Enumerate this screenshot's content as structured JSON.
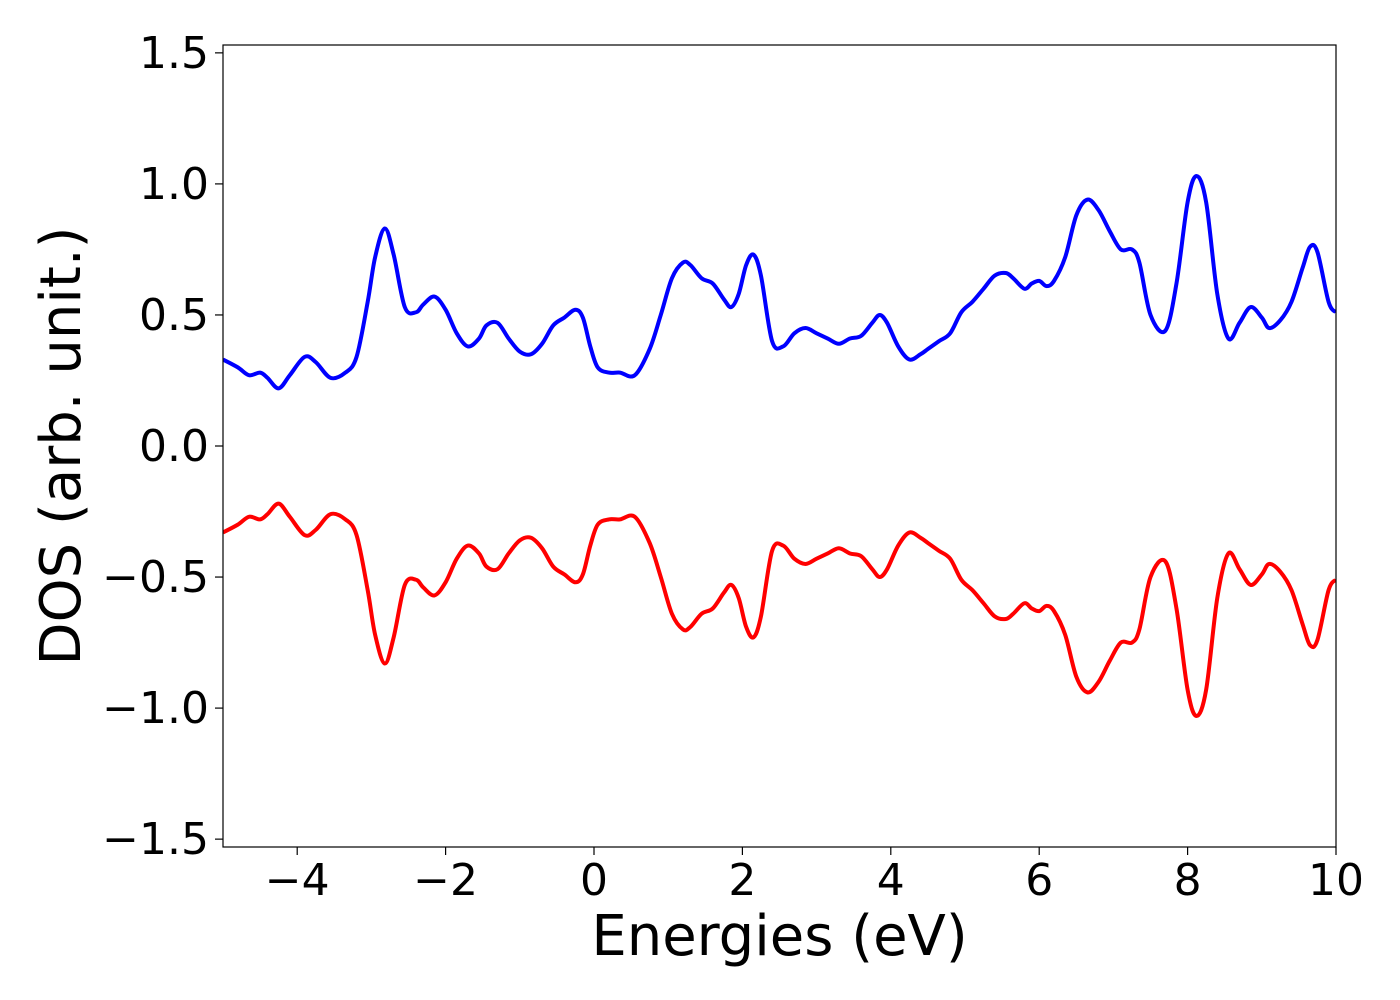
{
  "chart_data": {
    "type": "line",
    "xlabel": "Energies (eV)",
    "ylabel": "DOS (arb. unit.)",
    "xlim": [
      -5,
      10
    ],
    "ylim": [
      -1.53,
      1.53
    ],
    "xticks": [
      -4,
      -2,
      0,
      2,
      4,
      6,
      8,
      10
    ],
    "xtick_labels": [
      "−4",
      "−2",
      "0",
      "2",
      "4",
      "6",
      "8",
      "10"
    ],
    "yticks": [
      1.5,
      1.0,
      0.5,
      0.0,
      -0.5,
      -1.0,
      -1.5
    ],
    "ytick_labels": [
      "1.5",
      "1.0",
      "0.5",
      "0.0",
      "−0.5",
      "−1.0",
      "−1.5"
    ],
    "grid": false,
    "series": [
      {
        "color": "#0000ff",
        "x": [
          -5.0,
          -4.8,
          -4.65,
          -4.5,
          -4.4,
          -4.25,
          -4.1,
          -3.9,
          -3.75,
          -3.55,
          -3.35,
          -3.2,
          -3.05,
          -2.95,
          -2.82,
          -2.7,
          -2.55,
          -2.4,
          -2.3,
          -2.15,
          -2.0,
          -1.85,
          -1.7,
          -1.55,
          -1.45,
          -1.3,
          -1.15,
          -1.0,
          -0.85,
          -0.7,
          -0.55,
          -0.4,
          -0.25,
          -0.15,
          -0.05,
          0.05,
          0.2,
          0.35,
          0.55,
          0.75,
          0.9,
          1.05,
          1.2,
          1.3,
          1.45,
          1.6,
          1.75,
          1.85,
          1.95,
          2.05,
          2.15,
          2.25,
          2.4,
          2.55,
          2.7,
          2.85,
          3.0,
          3.15,
          3.3,
          3.45,
          3.6,
          3.75,
          3.85,
          3.95,
          4.1,
          4.25,
          4.4,
          4.5,
          4.65,
          4.8,
          4.95,
          5.1,
          5.25,
          5.4,
          5.55,
          5.65,
          5.8,
          5.9,
          6.0,
          6.1,
          6.2,
          6.35,
          6.5,
          6.65,
          6.8,
          6.95,
          7.1,
          7.25,
          7.35,
          7.5,
          7.7,
          7.85,
          8.0,
          8.12,
          8.25,
          8.4,
          8.55,
          8.7,
          8.85,
          9.0,
          9.1,
          9.25,
          9.4,
          9.55,
          9.65,
          9.75,
          9.9,
          10.0
        ],
        "y": [
          0.33,
          0.3,
          0.27,
          0.28,
          0.26,
          0.22,
          0.27,
          0.34,
          0.32,
          0.26,
          0.28,
          0.34,
          0.55,
          0.72,
          0.83,
          0.73,
          0.53,
          0.51,
          0.54,
          0.57,
          0.52,
          0.43,
          0.38,
          0.41,
          0.46,
          0.47,
          0.41,
          0.36,
          0.35,
          0.39,
          0.46,
          0.49,
          0.52,
          0.49,
          0.38,
          0.3,
          0.28,
          0.28,
          0.27,
          0.37,
          0.5,
          0.64,
          0.7,
          0.69,
          0.64,
          0.62,
          0.56,
          0.53,
          0.58,
          0.69,
          0.73,
          0.65,
          0.4,
          0.38,
          0.43,
          0.45,
          0.43,
          0.41,
          0.39,
          0.41,
          0.42,
          0.47,
          0.5,
          0.47,
          0.38,
          0.33,
          0.35,
          0.37,
          0.4,
          0.43,
          0.51,
          0.55,
          0.6,
          0.65,
          0.66,
          0.64,
          0.6,
          0.62,
          0.63,
          0.61,
          0.63,
          0.72,
          0.88,
          0.94,
          0.9,
          0.82,
          0.75,
          0.75,
          0.7,
          0.5,
          0.44,
          0.62,
          0.93,
          1.03,
          0.93,
          0.58,
          0.41,
          0.47,
          0.53,
          0.49,
          0.45,
          0.48,
          0.55,
          0.68,
          0.76,
          0.74,
          0.55,
          0.51
        ]
      },
      {
        "color": "#ff0000",
        "x": [
          -5.0,
          -4.8,
          -4.65,
          -4.5,
          -4.4,
          -4.25,
          -4.1,
          -3.9,
          -3.75,
          -3.55,
          -3.35,
          -3.2,
          -3.05,
          -2.95,
          -2.82,
          -2.7,
          -2.55,
          -2.4,
          -2.3,
          -2.15,
          -2.0,
          -1.85,
          -1.7,
          -1.55,
          -1.45,
          -1.3,
          -1.15,
          -1.0,
          -0.85,
          -0.7,
          -0.55,
          -0.4,
          -0.25,
          -0.15,
          -0.05,
          0.05,
          0.2,
          0.35,
          0.55,
          0.75,
          0.9,
          1.05,
          1.2,
          1.3,
          1.45,
          1.6,
          1.75,
          1.85,
          1.95,
          2.05,
          2.15,
          2.25,
          2.4,
          2.55,
          2.7,
          2.85,
          3.0,
          3.15,
          3.3,
          3.45,
          3.6,
          3.75,
          3.85,
          3.95,
          4.1,
          4.25,
          4.4,
          4.5,
          4.65,
          4.8,
          4.95,
          5.1,
          5.25,
          5.4,
          5.55,
          5.65,
          5.8,
          5.9,
          6.0,
          6.1,
          6.2,
          6.35,
          6.5,
          6.65,
          6.8,
          6.95,
          7.1,
          7.25,
          7.35,
          7.5,
          7.7,
          7.85,
          8.0,
          8.12,
          8.25,
          8.4,
          8.55,
          8.7,
          8.85,
          9.0,
          9.1,
          9.25,
          9.4,
          9.55,
          9.65,
          9.75,
          9.9,
          10.0
        ],
        "y": [
          -0.33,
          -0.3,
          -0.27,
          -0.28,
          -0.26,
          -0.22,
          -0.27,
          -0.34,
          -0.32,
          -0.26,
          -0.28,
          -0.34,
          -0.55,
          -0.72,
          -0.83,
          -0.73,
          -0.53,
          -0.51,
          -0.54,
          -0.57,
          -0.52,
          -0.43,
          -0.38,
          -0.41,
          -0.46,
          -0.47,
          -0.41,
          -0.36,
          -0.35,
          -0.39,
          -0.46,
          -0.49,
          -0.52,
          -0.49,
          -0.38,
          -0.3,
          -0.28,
          -0.28,
          -0.27,
          -0.37,
          -0.5,
          -0.64,
          -0.7,
          -0.69,
          -0.64,
          -0.62,
          -0.56,
          -0.53,
          -0.58,
          -0.69,
          -0.73,
          -0.65,
          -0.4,
          -0.38,
          -0.43,
          -0.45,
          -0.43,
          -0.41,
          -0.39,
          -0.41,
          -0.42,
          -0.47,
          -0.5,
          -0.47,
          -0.38,
          -0.33,
          -0.35,
          -0.37,
          -0.4,
          -0.43,
          -0.51,
          -0.55,
          -0.6,
          -0.65,
          -0.66,
          -0.64,
          -0.6,
          -0.62,
          -0.63,
          -0.61,
          -0.63,
          -0.72,
          -0.88,
          -0.94,
          -0.9,
          -0.82,
          -0.75,
          -0.75,
          -0.7,
          -0.5,
          -0.44,
          -0.62,
          -0.93,
          -1.03,
          -0.93,
          -0.58,
          -0.41,
          -0.47,
          -0.53,
          -0.49,
          -0.45,
          -0.48,
          -0.55,
          -0.68,
          -0.76,
          -0.74,
          -0.55,
          -0.51
        ]
      }
    ]
  }
}
